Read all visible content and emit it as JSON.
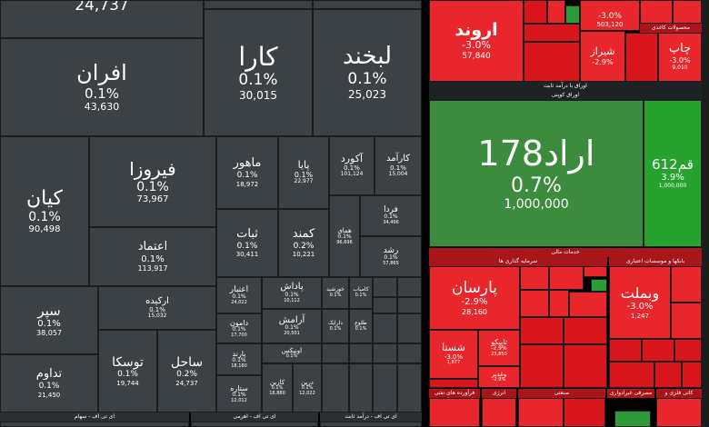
{
  "left": {
    "top_value": "24,737",
    "tiles": [
      {
        "symbol": "افران",
        "pct": "0.1%",
        "value": "43,630"
      },
      {
        "symbol": "کارا",
        "pct": "0.1%",
        "value": "30,015"
      },
      {
        "symbol": "لبخند",
        "pct": "0.1%",
        "value": "25,023"
      },
      {
        "symbol": "کیان",
        "pct": "0.1%",
        "value": "90,498"
      },
      {
        "symbol": "فیروزا",
        "pct": "0.1%",
        "value": "73,967"
      },
      {
        "symbol": "اعتماد",
        "pct": "0.1%",
        "value": "113,917"
      },
      {
        "symbol": "ماهور",
        "pct": "0.1%",
        "value": "18,972"
      },
      {
        "symbol": "پایا",
        "pct": "0.1%",
        "value": "22,977"
      },
      {
        "symbol": "آکورد",
        "pct": "0.1%",
        "value": "101,124"
      },
      {
        "symbol": "کارآمد",
        "pct": "0.1%",
        "value": "15,004"
      },
      {
        "symbol": "ثبات",
        "pct": "0.1%",
        "value": "30,411"
      },
      {
        "symbol": "کمند",
        "pct": "0.2%",
        "value": "10,221"
      },
      {
        "symbol": "همای",
        "pct": "0.1%",
        "value": "96,696"
      },
      {
        "symbol": "فردا",
        "pct": "0.1%",
        "value": "34,496"
      },
      {
        "symbol": "رشد",
        "pct": "0.1%",
        "value": "57,865"
      },
      {
        "symbol": "سپر",
        "pct": "0.1%",
        "value": "38,057"
      },
      {
        "symbol": "ارکیده",
        "pct": "0.1%",
        "value": "15,032"
      },
      {
        "symbol": "اعتبار",
        "pct": "0.1%",
        "value": "24,022"
      },
      {
        "symbol": "پاداش",
        "pct": "0.1%",
        "value": "10,112"
      },
      {
        "symbol": "خورشید",
        "pct": "0.1%",
        "value": ""
      },
      {
        "symbol": "کامیاب",
        "pct": "0.1%",
        "value": ""
      },
      {
        "symbol": "تداوم",
        "pct": "0.1%",
        "value": "21,450"
      },
      {
        "symbol": "توسکا",
        "pct": "0.1%",
        "value": "19,744"
      },
      {
        "symbol": "ساحل",
        "pct": "0.2%",
        "value": "24,737"
      },
      {
        "symbol": "دامون",
        "pct": "0.1%",
        "value": "17,700"
      },
      {
        "symbol": "آرامش",
        "pct": "0.1%",
        "value": "20,501"
      },
      {
        "symbol": "دارایک",
        "pct": "0.1%",
        "value": ""
      },
      {
        "symbol": "طلوع",
        "pct": "0.1%",
        "value": ""
      },
      {
        "symbol": "پارند",
        "pct": "0.1%",
        "value": "18,180"
      },
      {
        "symbol": "اونیکس",
        "pct": "0.1%",
        "value": ""
      },
      {
        "symbol": "ستاره",
        "pct": "0.1%",
        "value": "12,012"
      },
      {
        "symbol": "کارین",
        "pct": "0.1%",
        "value": "18,880"
      },
      {
        "symbol": "درین",
        "pct": "0.1%",
        "value": "12,022"
      }
    ],
    "bottom_headers": [
      "ای تی اف - سهام",
      "ای تی اف - اهرمی",
      "ای تی اف - درآمد ثابت"
    ]
  },
  "right": {
    "top_tiles": [
      {
        "symbol": "اروند",
        "pct": "-3.0%",
        "value": "57,840"
      },
      {
        "symbol": "چاپ",
        "pct": "-3.0%",
        "value": "503,120"
      },
      {
        "symbol": "شیراز",
        "pct": "-2.9%",
        "value": "9,010"
      },
      {
        "symbol": "چاپ",
        "pct": "-3.0%",
        "value": "9,010"
      }
    ],
    "top_header": "محصولات کاغذی",
    "section1_header": "اوراق با درآمد ثابت",
    "section1_sub": "اوراق کوپنی",
    "arad": {
      "symbol": "اراد178",
      "pct": "0.7%",
      "value": "1,000,000"
    },
    "qam": {
      "symbol": "قم612",
      "pct": "3.9%",
      "value": "1,000,000"
    },
    "section2_header": "خدمات مالی",
    "sub_headers": [
      "سرمایه گذاری ها",
      "بانکها و موسسات اعتباری"
    ],
    "parsan": {
      "symbol": "پارسان",
      "pct": "-2.9%",
      "value": "28,160"
    },
    "vbmellat": {
      "symbol": "وبملت",
      "pct": "-3.0%",
      "value": "1,247"
    },
    "shasta": {
      "symbol": "شستا",
      "pct": "-3.0%",
      "value": "1,877"
    },
    "tapico": {
      "symbol": "تاپیکو",
      "pct": "-2.9%",
      "value": "23,850"
    },
    "vghadir": {
      "symbol": "وغدیر",
      "pct": "-2.9%",
      "value": "5,121"
    },
    "bottom_headers": [
      "فرآورده های نفتی",
      "انرژی",
      "صنعتی",
      "مصرفی غیرادواری",
      "کانی فلزی و غیرفلزی"
    ]
  },
  "colors": {
    "neutral": "#3c4146",
    "negative": "#e8262b",
    "positive": "#3d8b3d"
  }
}
